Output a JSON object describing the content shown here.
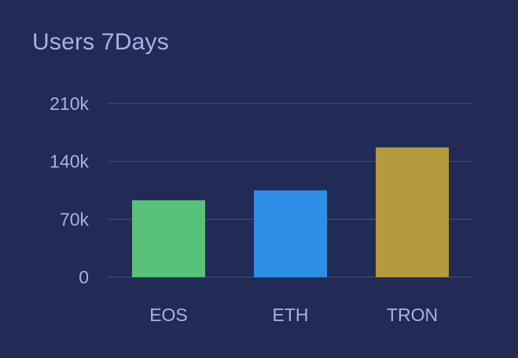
{
  "title": "Users 7Days",
  "chart_data": {
    "type": "bar",
    "title": "Users 7Days",
    "categories": [
      "EOS",
      "ETH",
      "TRON"
    ],
    "values": [
      93000,
      105000,
      157000
    ],
    "colors": [
      "#5ac17a",
      "#2f8fe8",
      "#b59a3d"
    ],
    "ylim": [
      0,
      210000
    ],
    "yticks": [
      0,
      70000,
      140000,
      210000
    ],
    "ytick_labels": [
      "0",
      "70k",
      "140k",
      "210k"
    ],
    "xlabel": "",
    "ylabel": "",
    "grid": true,
    "legend": "none"
  }
}
